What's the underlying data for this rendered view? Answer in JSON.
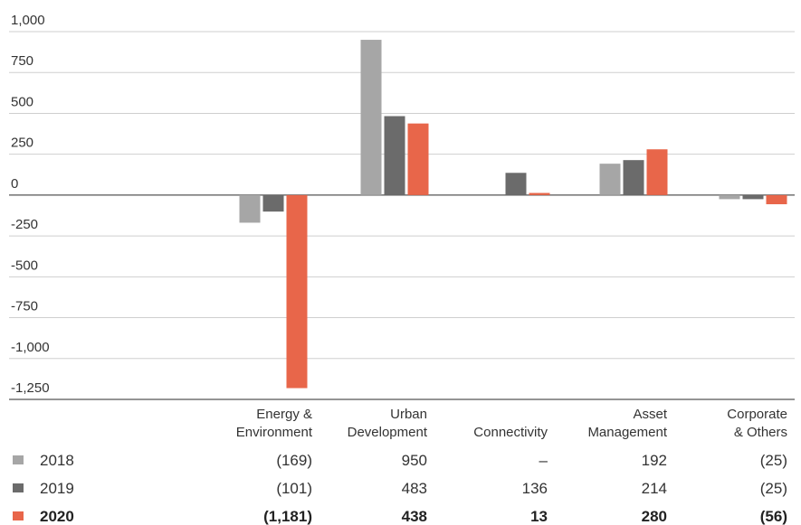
{
  "chart_data": {
    "type": "bar",
    "categories": [
      "Energy &\nEnvironment",
      "Urban\nDevelopment",
      "Connectivity",
      "Asset\nManagement",
      "Corporate\n& Others"
    ],
    "series": [
      {
        "name": "2018",
        "values": [
          -169,
          950,
          0,
          192,
          -25
        ],
        "labels": [
          "(169)",
          "950",
          "–",
          "192",
          "(25)"
        ],
        "color": "#a6a6a6",
        "bold": false
      },
      {
        "name": "2019",
        "values": [
          -101,
          483,
          136,
          214,
          -25
        ],
        "labels": [
          "(101)",
          "483",
          "136",
          "214",
          "(25)"
        ],
        "color": "#6b6b6b",
        "bold": false
      },
      {
        "name": "2020",
        "values": [
          -1181,
          438,
          13,
          280,
          -56
        ],
        "labels": [
          "(1,181)",
          "438",
          "13",
          "280",
          "(56)"
        ],
        "color": "#e8664a",
        "bold": true
      }
    ],
    "ylim": [
      -1250,
      1000
    ],
    "yticks": [
      1000,
      750,
      500,
      250,
      0,
      -250,
      -500,
      -750,
      -1000,
      -1250
    ],
    "ytick_labels": [
      "1,000",
      "750",
      "500",
      "250",
      "0",
      "-250",
      "-500",
      "-750",
      "-1,000",
      "-1,250"
    ],
    "grid": true,
    "legend": "table-below"
  }
}
